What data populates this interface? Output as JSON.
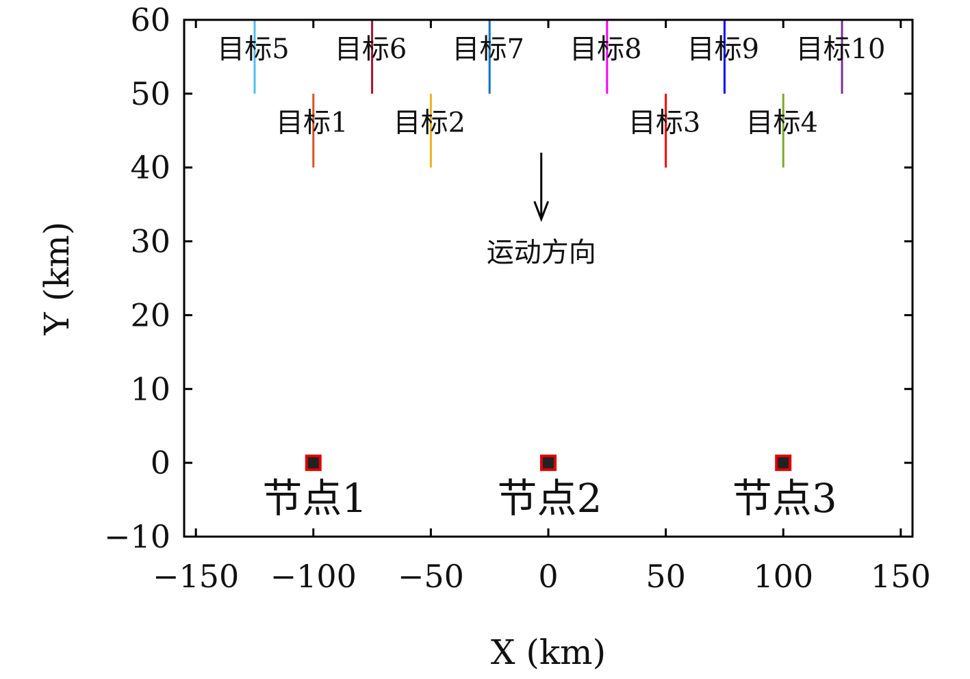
{
  "chart_data": {
    "type": "scatter",
    "xlabel": "X (km)",
    "ylabel": "Y (km)",
    "xlim": [
      -155,
      155
    ],
    "ylim": [
      -10,
      60
    ],
    "xticks": [
      -150,
      -100,
      -50,
      0,
      50,
      100,
      150
    ],
    "yticks": [
      -10,
      0,
      10,
      20,
      30,
      40,
      50,
      60
    ],
    "xtick_labels": [
      "−150",
      "−100",
      "−50",
      "0",
      "50",
      "100",
      "150"
    ],
    "ytick_labels": [
      "−10",
      "0",
      "10",
      "20",
      "30",
      "40",
      "50",
      "60"
    ],
    "targets": [
      {
        "label": "目标1",
        "x": -100,
        "y_start": 40,
        "y_end": 50,
        "color": "#d95319"
      },
      {
        "label": "目标2",
        "x": -50,
        "y_start": 40,
        "y_end": 50,
        "color": "#edb120"
      },
      {
        "label": "目标3",
        "x": 50,
        "y_start": 40,
        "y_end": 50,
        "color": "#ff0000"
      },
      {
        "label": "目标4",
        "x": 100,
        "y_start": 40,
        "y_end": 50,
        "color": "#77ac30"
      },
      {
        "label": "目标5",
        "x": -125,
        "y_start": 50,
        "y_end": 60,
        "color": "#4dbeee"
      },
      {
        "label": "目标6",
        "x": -75,
        "y_start": 50,
        "y_end": 60,
        "color": "#a2142f"
      },
      {
        "label": "目标7",
        "x": -25,
        "y_start": 50,
        "y_end": 60,
        "color": "#0072bd"
      },
      {
        "label": "目标8",
        "x": 25,
        "y_start": 50,
        "y_end": 60,
        "color": "#ff00ff"
      },
      {
        "label": "目标9",
        "x": 75,
        "y_start": 50,
        "y_end": 60,
        "color": "#0000ff"
      },
      {
        "label": "目标10",
        "x": 125,
        "y_start": 50,
        "y_end": 60,
        "color": "#7e2f8e"
      }
    ],
    "nodes": [
      {
        "label": "节点1",
        "x": -100,
        "y": 0
      },
      {
        "label": "节点2",
        "x": 0,
        "y": 0
      },
      {
        "label": "节点3",
        "x": 100,
        "y": 0
      }
    ],
    "annotation": {
      "text": "运动方向",
      "x": -3,
      "y_from": 42,
      "y_to": 33
    },
    "colors": {
      "node_fill": "#222222",
      "node_edge": "#e00000",
      "axis": "#000000"
    }
  }
}
